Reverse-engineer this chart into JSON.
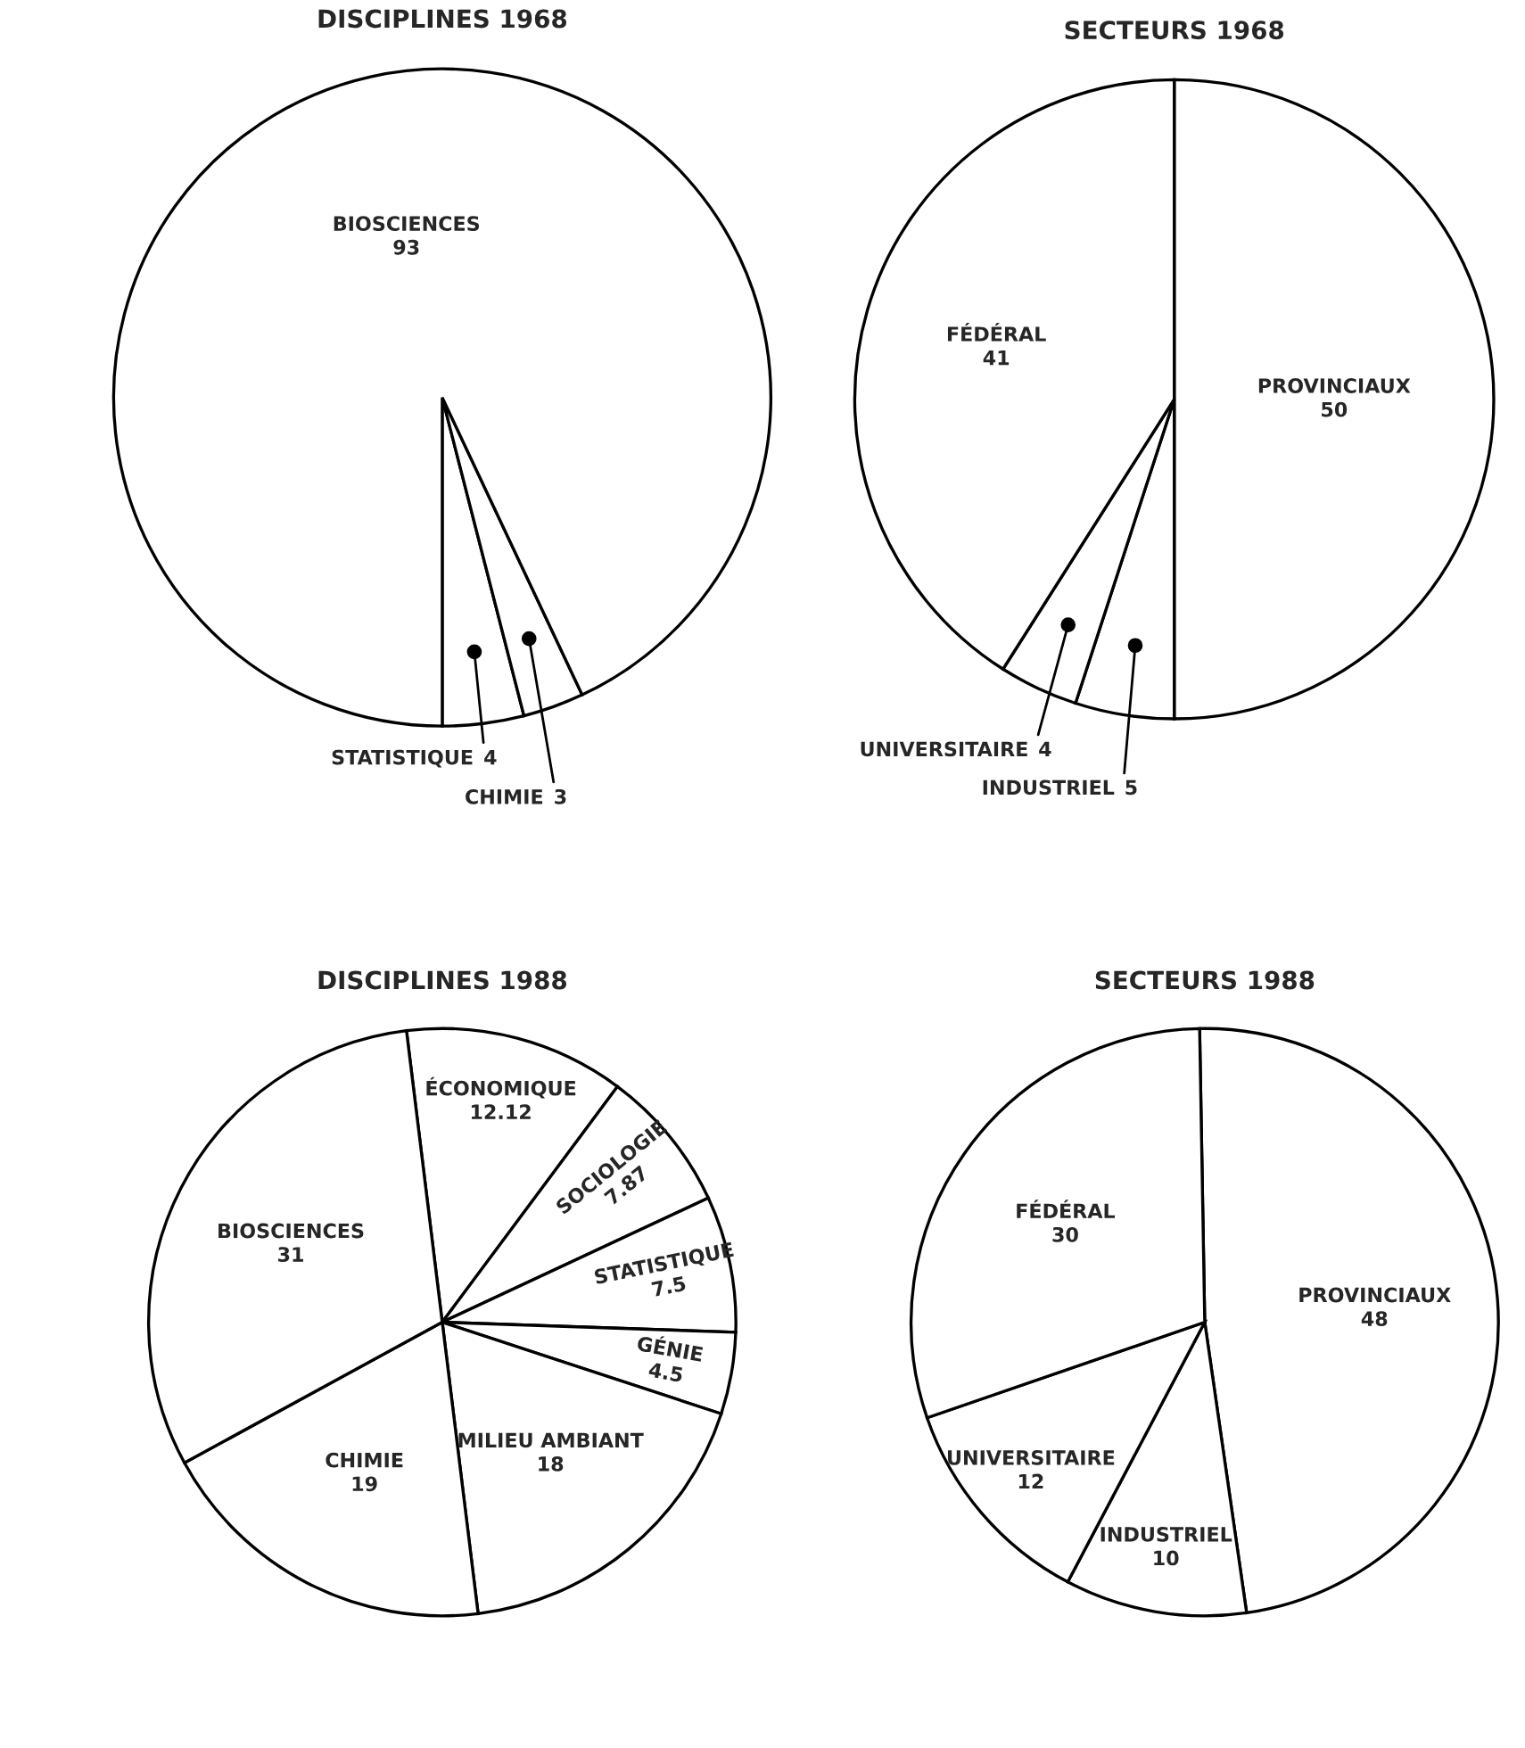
{
  "chart_data": [
    {
      "type": "pie",
      "title": "DISCIPLINES 1968",
      "categories": [
        "STATISTIQUE",
        "CHIMIE",
        "BIOSCIENCES"
      ],
      "values": [
        4,
        3,
        93
      ],
      "colors": [
        "#ffffff",
        "#ffffff",
        "#ffffff"
      ],
      "data_labels": true
    },
    {
      "type": "pie",
      "title": "SECTEURS 1968",
      "categories": [
        "PROVINCIAUX",
        "INDUSTRIEL",
        "UNIVERSITAIRE",
        "FÉDÉRAL"
      ],
      "values": [
        50,
        5,
        4,
        41
      ],
      "colors": [
        "#ffffff",
        "#ffffff",
        "#ffffff",
        "#ffffff"
      ],
      "data_labels": true
    },
    {
      "type": "pie",
      "title": "DISCIPLINES 1988",
      "categories": [
        "ÉCONOMIQUE",
        "SOCIOLOGIE",
        "STATISTIQUE",
        "GÉNIE",
        "MILIEU AMBIANT",
        "CHIMIE",
        "BIOSCIENCES"
      ],
      "values": [
        12.12,
        7.87,
        7.5,
        4.5,
        18,
        19,
        31
      ],
      "colors": [
        "#ffffff",
        "#ffffff",
        "#ffffff",
        "#ffffff",
        "#ffffff",
        "#ffffff",
        "#ffffff"
      ],
      "data_labels": true
    },
    {
      "type": "pie",
      "title": "SECTEURS 1988",
      "categories": [
        "PROVINCIAUX",
        "INDUSTRIEL",
        "UNIVERSITAIRE",
        "FÉDÉRAL"
      ],
      "values": [
        48,
        10,
        12,
        30
      ],
      "colors": [
        "#ffffff",
        "#ffffff",
        "#ffffff",
        "#ffffff"
      ],
      "data_labels": true
    }
  ]
}
